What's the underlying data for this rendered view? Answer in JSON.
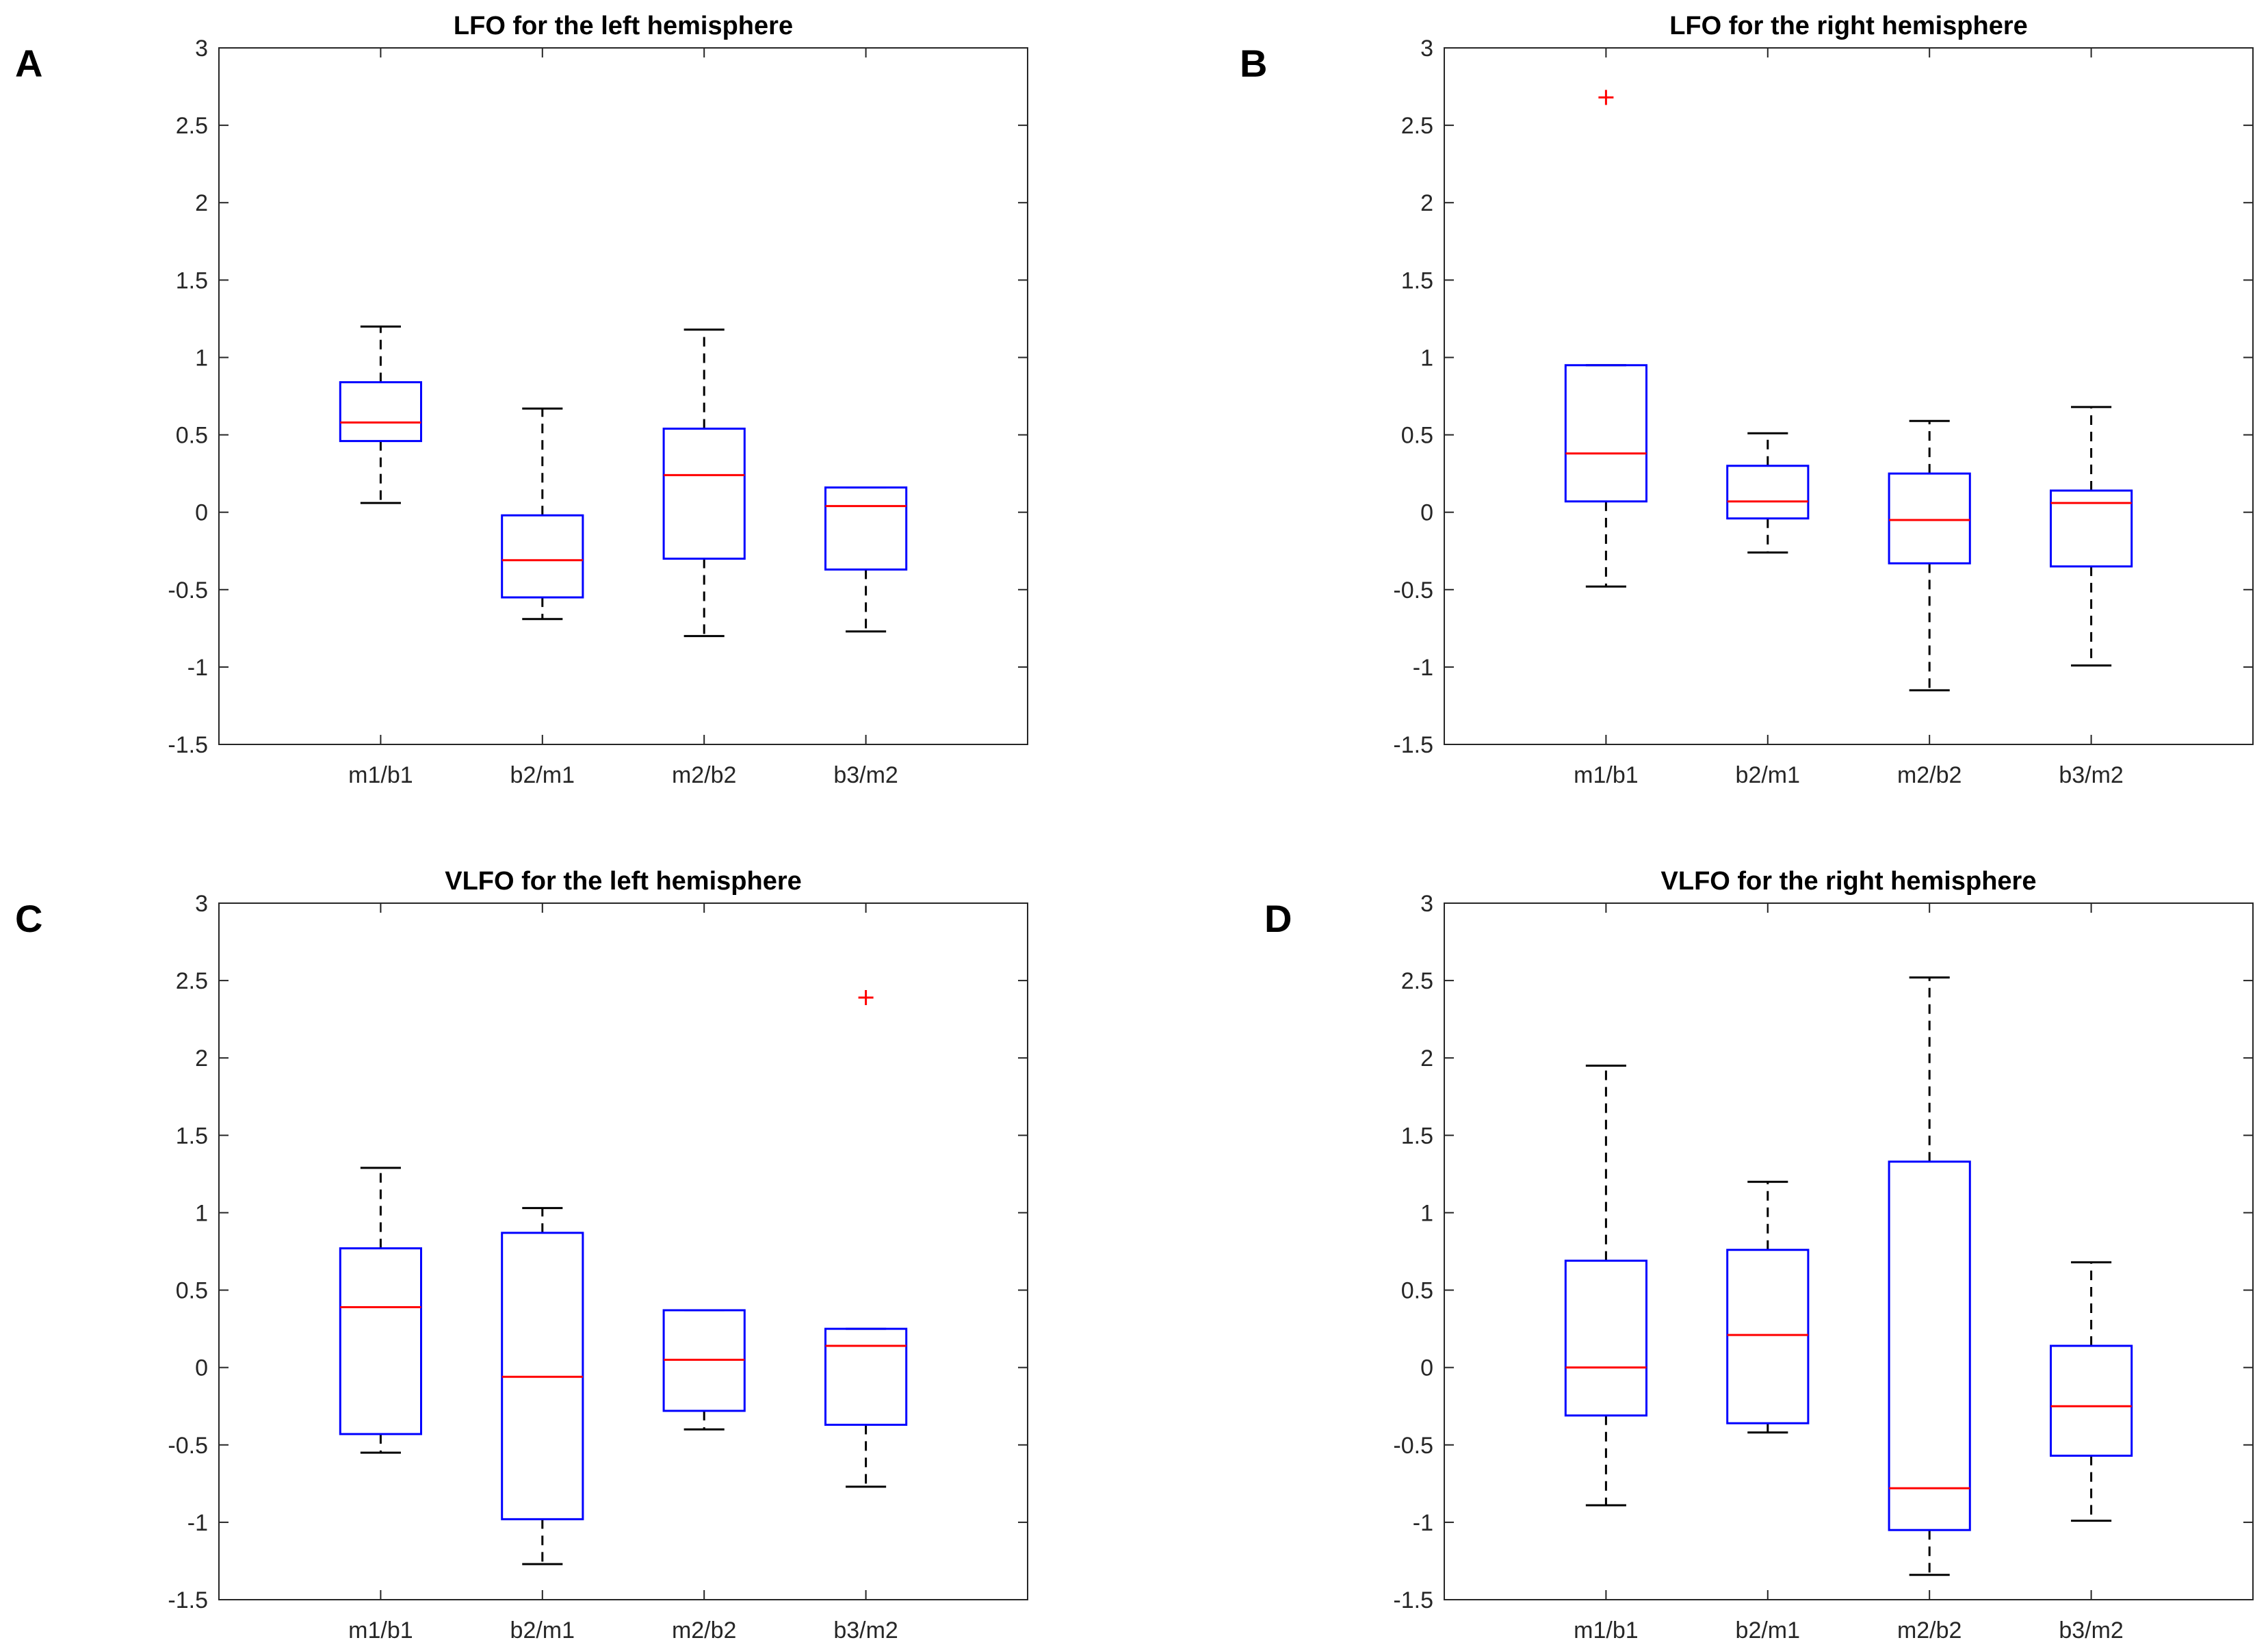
{
  "colors": {
    "box": "#0000ff",
    "median": "#ff0000",
    "whisker": "#000000",
    "outlier": "#ff0000",
    "axis": "#262626",
    "text": "#262626"
  },
  "chart_data": [
    {
      "type": "box",
      "panel_label": "A",
      "title": "LFO for the left hemisphere",
      "xlabel": "",
      "ylabel": "",
      "ylim": [
        -1.5,
        3
      ],
      "yticks": [
        "-1.5",
        "-1",
        "-0.5",
        "0",
        "0.5",
        "1",
        "1.5",
        "2",
        "2.5",
        "3"
      ],
      "categories": [
        "m1/b1",
        "b2/m1",
        "m2/b2",
        "b3/m2"
      ],
      "boxes": [
        {
          "whisker_low": 0.06,
          "q1": 0.46,
          "median": 0.58,
          "q3": 0.84,
          "whisker_high": 1.2,
          "outliers": []
        },
        {
          "whisker_low": -0.69,
          "q1": -0.55,
          "median": -0.31,
          "q3": -0.02,
          "whisker_high": 0.67,
          "outliers": []
        },
        {
          "whisker_low": -0.8,
          "q1": -0.3,
          "median": 0.24,
          "q3": 0.54,
          "whisker_high": 1.18,
          "outliers": []
        },
        {
          "whisker_low": -0.77,
          "q1": -0.37,
          "median": 0.04,
          "q3": 0.16,
          "whisker_high": 0.16,
          "outliers": []
        }
      ]
    },
    {
      "type": "box",
      "panel_label": "B",
      "title": "LFO for the right hemisphere",
      "xlabel": "",
      "ylabel": "",
      "ylim": [
        -1.5,
        3
      ],
      "yticks": [
        "-1.5",
        "-1",
        "-0.5",
        "0",
        "0.5",
        "1",
        "1.5",
        "2",
        "2.5",
        "3"
      ],
      "categories": [
        "m1/b1",
        "b2/m1",
        "m2/b2",
        "b3/m2"
      ],
      "boxes": [
        {
          "whisker_low": -0.48,
          "q1": 0.07,
          "median": 0.38,
          "q3": 0.95,
          "whisker_high": 0.95,
          "outliers": [
            2.68
          ]
        },
        {
          "whisker_low": -0.26,
          "q1": -0.04,
          "median": 0.07,
          "q3": 0.3,
          "whisker_high": 0.51,
          "outliers": []
        },
        {
          "whisker_low": -1.15,
          "q1": -0.33,
          "median": -0.05,
          "q3": 0.25,
          "whisker_high": 0.59,
          "outliers": []
        },
        {
          "whisker_low": -0.99,
          "q1": -0.35,
          "median": 0.06,
          "q3": 0.14,
          "whisker_high": 0.68,
          "outliers": []
        }
      ]
    },
    {
      "type": "box",
      "panel_label": "C",
      "title": "VLFO for the left hemisphere",
      "xlabel": "",
      "ylabel": "",
      "ylim": [
        -1.5,
        3
      ],
      "yticks": [
        "-1.5",
        "-1",
        "-0.5",
        "0",
        "0.5",
        "1",
        "1.5",
        "2",
        "2.5",
        "3"
      ],
      "categories": [
        "m1/b1",
        "b2/m1",
        "m2/b2",
        "b3/m2"
      ],
      "boxes": [
        {
          "whisker_low": -0.55,
          "q1": -0.43,
          "median": 0.39,
          "q3": 0.77,
          "whisker_high": 1.29,
          "outliers": []
        },
        {
          "whisker_low": -1.27,
          "q1": -0.98,
          "median": -0.06,
          "q3": 0.87,
          "whisker_high": 1.03,
          "outliers": []
        },
        {
          "whisker_low": -0.4,
          "q1": -0.28,
          "median": 0.05,
          "q3": 0.37,
          "whisker_high": 0.37,
          "outliers": []
        },
        {
          "whisker_low": -0.77,
          "q1": -0.37,
          "median": 0.14,
          "q3": 0.25,
          "whisker_high": 0.25,
          "outliers": [
            2.39
          ]
        }
      ]
    },
    {
      "type": "box",
      "panel_label": "D",
      "title": "VLFO for the right hemisphere",
      "xlabel": "",
      "ylabel": "",
      "ylim": [
        -1.5,
        3
      ],
      "yticks": [
        "-1.5",
        "-1",
        "-0.5",
        "0",
        "0.5",
        "1",
        "1.5",
        "2",
        "2.5",
        "3"
      ],
      "categories": [
        "m1/b1",
        "b2/m1",
        "m2/b2",
        "b3/m2"
      ],
      "boxes": [
        {
          "whisker_low": -0.89,
          "q1": -0.31,
          "median": 0.0,
          "q3": 0.69,
          "whisker_high": 1.95,
          "outliers": []
        },
        {
          "whisker_low": -0.42,
          "q1": -0.36,
          "median": 0.21,
          "q3": 0.76,
          "whisker_high": 1.2,
          "outliers": []
        },
        {
          "whisker_low": -1.34,
          "q1": -1.05,
          "median": -0.78,
          "q3": 1.33,
          "whisker_high": 2.52,
          "outliers": []
        },
        {
          "whisker_low": -0.99,
          "q1": -0.57,
          "median": -0.25,
          "q3": 0.14,
          "whisker_high": 0.68,
          "outliers": []
        }
      ]
    }
  ]
}
